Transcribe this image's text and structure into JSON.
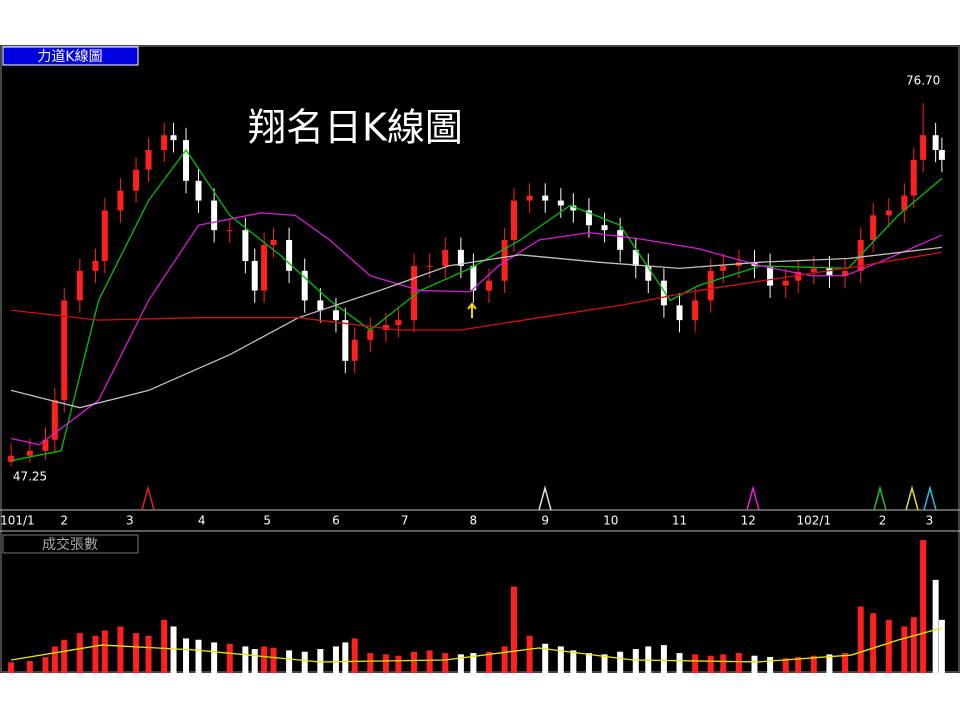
{
  "chart_data": [
    {
      "type": "candlestick",
      "title": "力道K線圖",
      "annotation": "翔名日K線圖",
      "x": [
        1,
        7,
        12,
        15,
        18,
        23,
        28,
        31,
        36,
        41,
        45,
        50,
        53,
        57,
        61,
        66,
        71,
        76,
        79,
        82,
        85,
        90,
        95,
        100,
        105,
        108,
        111,
        116,
        121,
        125,
        130,
        135,
        140,
        145,
        149,
        154,
        159,
        162,
        167,
        172,
        177,
        181,
        186,
        191,
        196,
        201,
        205,
        210,
        215,
        220,
        225,
        229,
        234,
        239,
        244,
        249,
        253,
        258,
        263,
        268,
        273,
        277,
        282,
        287,
        290,
        293,
        297,
        299
      ],
      "open": [
        47.6,
        48.1,
        48.5,
        49.4,
        52.6,
        60.7,
        63.1,
        63.9,
        68.0,
        69.6,
        71.3,
        72.9,
        74.1,
        73.7,
        70.4,
        68.8,
        66.4,
        66.4,
        63.9,
        61.5,
        65.2,
        65.6,
        63.1,
        60.7,
        59.9,
        59.1,
        55.8,
        57.5,
        58.3,
        58.7,
        59.1,
        63.5,
        63.5,
        64.8,
        63.5,
        61.5,
        62.3,
        65.6,
        68.8,
        69.2,
        68.8,
        68.4,
        68.0,
        66.8,
        66.4,
        64.8,
        63.5,
        62.3,
        60.3,
        59.1,
        60.7,
        63.1,
        63.5,
        63.8,
        63.5,
        61.9,
        62.3,
        63.0,
        63.3,
        62.7,
        63.1,
        65.6,
        67.6,
        68.0,
        69.2,
        72.1,
        74.1,
        72.9
      ],
      "high": [
        49.1,
        49.5,
        50.4,
        53.6,
        61.7,
        64.1,
        64.9,
        69.0,
        70.6,
        72.3,
        73.9,
        75.1,
        75.1,
        74.7,
        71.4,
        69.8,
        67.4,
        67.4,
        64.9,
        66.2,
        66.6,
        66.6,
        64.1,
        61.7,
        60.9,
        60.1,
        58.5,
        59.3,
        59.7,
        60.1,
        64.5,
        64.5,
        65.8,
        65.8,
        64.5,
        63.3,
        66.6,
        69.8,
        70.2,
        70.2,
        69.8,
        69.4,
        69.0,
        67.8,
        67.4,
        65.8,
        64.5,
        63.3,
        61.3,
        61.7,
        64.1,
        64.5,
        64.8,
        64.8,
        64.5,
        63.3,
        64.0,
        64.3,
        64.3,
        64.1,
        66.6,
        68.6,
        69.0,
        70.2,
        73.1,
        76.7,
        75.1,
        73.9
      ],
      "low": [
        47.25,
        47.6,
        47.8,
        48.4,
        51.6,
        59.7,
        62.1,
        62.9,
        67.0,
        68.6,
        70.3,
        71.9,
        72.7,
        69.4,
        67.8,
        65.4,
        65.4,
        62.9,
        60.5,
        60.5,
        64.2,
        62.1,
        59.7,
        58.9,
        58.1,
        54.8,
        54.8,
        56.5,
        57.3,
        57.7,
        58.1,
        62.5,
        62.5,
        62.5,
        60.5,
        60.5,
        61.3,
        64.6,
        67.8,
        67.8,
        67.4,
        67.0,
        65.8,
        65.4,
        63.8,
        62.5,
        61.3,
        59.3,
        58.1,
        58.1,
        59.7,
        62.1,
        62.5,
        62.5,
        60.9,
        60.9,
        61.3,
        62.0,
        61.7,
        61.7,
        62.1,
        64.6,
        66.6,
        67.0,
        68.2,
        71.1,
        71.9,
        71.1
      ],
      "close": [
        48.1,
        48.5,
        49.4,
        52.6,
        60.7,
        63.1,
        63.9,
        68.0,
        69.6,
        71.3,
        72.9,
        74.1,
        73.7,
        70.4,
        68.8,
        66.4,
        66.4,
        63.9,
        61.5,
        65.2,
        65.6,
        63.1,
        60.7,
        59.9,
        59.1,
        55.8,
        57.5,
        58.3,
        58.7,
        59.1,
        63.5,
        63.5,
        64.8,
        63.5,
        61.5,
        62.3,
        65.6,
        68.8,
        69.2,
        68.8,
        68.4,
        68.0,
        66.8,
        66.4,
        64.8,
        63.5,
        62.3,
        60.3,
        59.1,
        60.7,
        63.1,
        63.5,
        63.8,
        63.5,
        61.9,
        62.3,
        63.0,
        63.3,
        62.7,
        63.1,
        65.6,
        67.6,
        68.0,
        69.2,
        72.1,
        74.1,
        72.9,
        72.1
      ],
      "up_color": "#ff2020",
      "down_color": "#ffffff",
      "lines": [
        {
          "color": "#00c000",
          "x": [
            1,
            17,
            29,
            45,
            57,
            71,
            87,
            103,
            116,
            132,
            148,
            164,
            180,
            196,
            212,
            221,
            241,
            269,
            285,
            299
          ],
          "values": [
            47.7,
            48.5,
            60.7,
            68.8,
            72.9,
            67.6,
            64.4,
            60.7,
            58.3,
            61.5,
            63.3,
            65.6,
            68.4,
            66.8,
            60.7,
            61.9,
            63.5,
            63.3,
            67.6,
            70.6
          ]
        },
        {
          "color": "#d020d0",
          "x": [
            1,
            10,
            29,
            45,
            61,
            81,
            92,
            103,
            116,
            132,
            148,
            157,
            170,
            186,
            202,
            221,
            241,
            257,
            268,
            279,
            299
          ],
          "values": [
            49.5,
            49.0,
            52.6,
            60.7,
            66.8,
            67.8,
            67.6,
            65.6,
            62.7,
            61.5,
            61.4,
            63.5,
            65.6,
            66.2,
            65.7,
            64.9,
            63.5,
            62.7,
            62.7,
            63.8,
            66.0
          ]
        },
        {
          "color": "#c0c0c0",
          "x": [
            1,
            23,
            45,
            71,
            93,
            119,
            141,
            164,
            189,
            215,
            241,
            269,
            299
          ],
          "values": [
            53.4,
            52.0,
            53.4,
            56.3,
            59.3,
            61.5,
            63.5,
            64.4,
            63.8,
            63.3,
            63.8,
            64.1,
            65.0
          ]
        },
        {
          "color": "#d01010",
          "x": [
            1,
            29,
            61,
            93,
            125,
            145,
            170,
            196,
            221,
            247,
            273,
            299
          ],
          "values": [
            59.9,
            59.1,
            59.3,
            59.3,
            58.3,
            58.3,
            59.3,
            60.3,
            61.5,
            62.5,
            63.5,
            64.6
          ]
        }
      ],
      "extremes": [
        {
          "value": 76.7,
          "label": "76.70"
        },
        {
          "value": 47.25,
          "label": "47.25"
        }
      ],
      "xlim": [
        0,
        300
      ],
      "xticks": [
        {
          "value": 3,
          "label": "101/1"
        },
        {
          "value": 18,
          "label": "2"
        },
        {
          "value": 39,
          "label": "3"
        },
        {
          "value": 62,
          "label": "4"
        },
        {
          "value": 83,
          "label": "5"
        },
        {
          "value": 105,
          "label": "6"
        },
        {
          "value": 127,
          "label": "7"
        },
        {
          "value": 149,
          "label": "8"
        },
        {
          "value": 172,
          "label": "9"
        },
        {
          "value": 193,
          "label": "10"
        },
        {
          "value": 215,
          "label": "11"
        },
        {
          "value": 237,
          "label": "12"
        },
        {
          "value": 258,
          "label": "102/1"
        },
        {
          "value": 280,
          "label": "2"
        },
        {
          "value": 295,
          "label": "3"
        }
      ],
      "ylim": [
        43.7,
        80.2
      ]
    },
    {
      "type": "bar",
      "title": "成交張數",
      "values": [
        80,
        90,
        120,
        200,
        250,
        300,
        280,
        320,
        350,
        300,
        280,
        400,
        350,
        260,
        250,
        230,
        220,
        200,
        180,
        200,
        190,
        170,
        160,
        180,
        200,
        230,
        260,
        150,
        140,
        130,
        160,
        170,
        150,
        140,
        150,
        160,
        200,
        650,
        280,
        220,
        200,
        170,
        150,
        140,
        160,
        180,
        200,
        210,
        150,
        140,
        130,
        140,
        150,
        130,
        120,
        110,
        120,
        130,
        140,
        150,
        500,
        450,
        400,
        350,
        420,
        1000,
        700,
        400
      ],
      "ylim": [
        0,
        1000
      ],
      "ma_color": "#e8e800",
      "ma_x": [
        1,
        30,
        60,
        100,
        140,
        170,
        200,
        240,
        270,
        285,
        299
      ],
      "ma_values": [
        98,
        210,
        173,
        83,
        98,
        188,
        98,
        83,
        135,
        248,
        338
      ]
    }
  ]
}
